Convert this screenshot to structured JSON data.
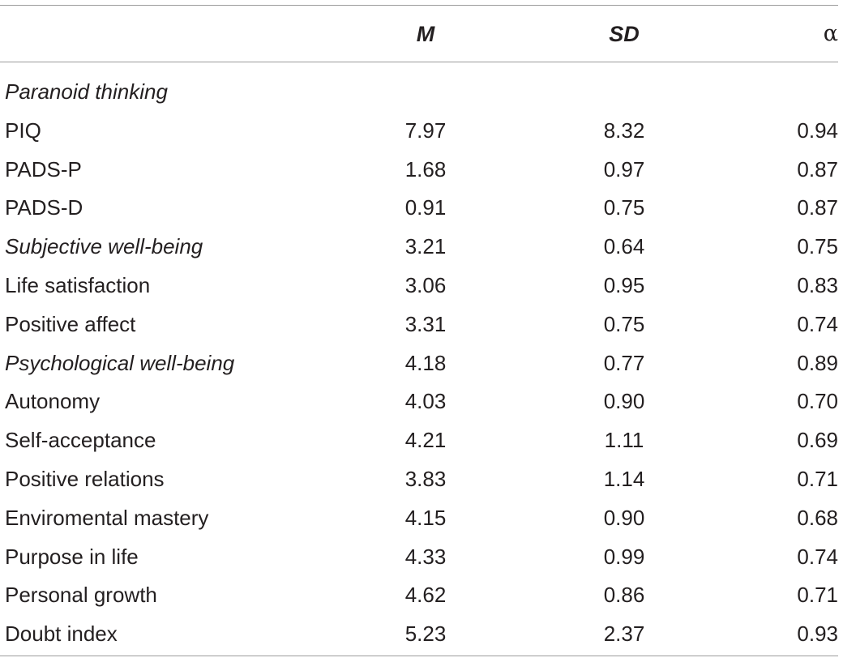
{
  "table": {
    "headers": {
      "label": "",
      "m": "M",
      "sd": "SD",
      "alpha": "α"
    },
    "rows": [
      {
        "label": "Paranoid thinking",
        "italic": true,
        "m": "",
        "sd": "",
        "alpha": ""
      },
      {
        "label": "PIQ",
        "italic": false,
        "m": "7.97",
        "sd": "8.32",
        "alpha": "0.94"
      },
      {
        "label": "PADS-P",
        "italic": false,
        "m": "1.68",
        "sd": "0.97",
        "alpha": "0.87"
      },
      {
        "label": "PADS-D",
        "italic": false,
        "m": "0.91",
        "sd": "0.75",
        "alpha": "0.87"
      },
      {
        "label": "Subjective well-being",
        "italic": true,
        "m": "3.21",
        "sd": "0.64",
        "alpha": "0.75"
      },
      {
        "label": "Life satisfaction",
        "italic": false,
        "m": "3.06",
        "sd": "0.95",
        "alpha": "0.83"
      },
      {
        "label": "Positive affect",
        "italic": false,
        "m": "3.31",
        "sd": "0.75",
        "alpha": "0.74"
      },
      {
        "label": "Psychological well-being",
        "italic": true,
        "m": "4.18",
        "sd": "0.77",
        "alpha": "0.89"
      },
      {
        "label": "Autonomy",
        "italic": false,
        "m": "4.03",
        "sd": "0.90",
        "alpha": "0.70"
      },
      {
        "label": "Self-acceptance",
        "italic": false,
        "m": "4.21",
        "sd": "1.11",
        "alpha": "0.69"
      },
      {
        "label": "Positive relations",
        "italic": false,
        "m": "3.83",
        "sd": "1.14",
        "alpha": "0.71"
      },
      {
        "label": "Enviromental mastery",
        "italic": false,
        "m": "4.15",
        "sd": "0.90",
        "alpha": "0.68"
      },
      {
        "label": "Purpose in life",
        "italic": false,
        "m": "4.33",
        "sd": "0.99",
        "alpha": "0.74"
      },
      {
        "label": "Personal growth",
        "italic": false,
        "m": "4.62",
        "sd": "0.86",
        "alpha": "0.71"
      },
      {
        "label": "Doubt index",
        "italic": false,
        "m": "5.23",
        "sd": "2.37",
        "alpha": "0.93"
      }
    ]
  }
}
